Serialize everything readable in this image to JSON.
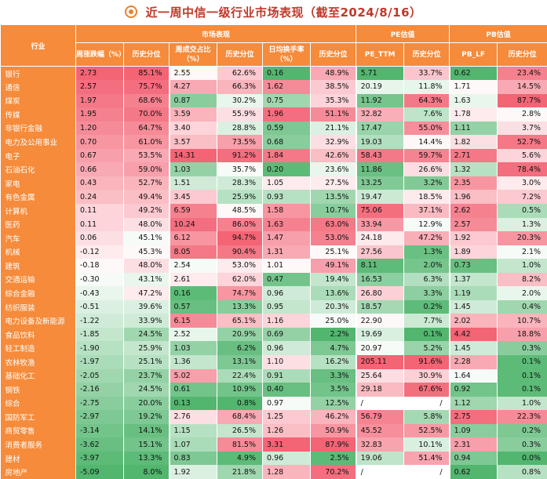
{
  "title": "近一周中信一级行业市场表现（截至2024/8/16）",
  "header": {
    "industry": "行业",
    "groups": [
      "市场表现",
      "PE估值",
      "PB估值"
    ],
    "columns": [
      "周涨跌幅（%）",
      "历史分位",
      "周成交占比（%）",
      "历史分位",
      "日均换手率（%）",
      "历史分位",
      "PE_TTM",
      "历史分位",
      "PB_LF",
      "历史分位"
    ]
  },
  "colors": {
    "header": "#f58b3b",
    "high": "#f25c6e",
    "low": "#3fae5f",
    "title": "#c0392b"
  },
  "rows": [
    {
      "name": "银行",
      "v": [
        "2.73",
        "85.1%",
        "2.55",
        "62.6%",
        "0.16",
        "48.9%",
        "5.71",
        "33.7%",
        "0.62",
        "23.4%"
      ]
    },
    {
      "name": "通信",
      "v": [
        "2.57",
        "75.7%",
        "4.27",
        "66.3%",
        "1.62",
        "38.5%",
        "20.19",
        "11.8%",
        "1.71",
        "14.5%"
      ]
    },
    {
      "name": "煤炭",
      "v": [
        "1.97",
        "68.6%",
        "0.87",
        "30.2%",
        "0.75",
        "35.3%",
        "11.92",
        "64.3%",
        "1.63",
        "87.7%"
      ]
    },
    {
      "name": "传媒",
      "v": [
        "1.95",
        "70.0%",
        "3.59",
        "55.9%",
        "1.96",
        "51.1%",
        "32.82",
        "7.6%",
        "1.78",
        "2.8%"
      ]
    },
    {
      "name": "非银行金融",
      "v": [
        "1.20",
        "64.7%",
        "3.40",
        "28.8%",
        "0.59",
        "21.1%",
        "17.47",
        "55.0%",
        "1.11",
        "3.7%"
      ]
    },
    {
      "name": "电力及公用事业",
      "v": [
        "0.70",
        "61.0%",
        "3.57",
        "73.5%",
        "0.68",
        "32.9%",
        "19.03",
        "14.4%",
        "1.82",
        "52.7%"
      ]
    },
    {
      "name": "电子",
      "v": [
        "0.67",
        "53.5%",
        "14.31",
        "91.2%",
        "1.84",
        "42.6%",
        "58.43",
        "59.7%",
        "2.71",
        "5.6%"
      ]
    },
    {
      "name": "石油石化",
      "v": [
        "0.66",
        "59.0%",
        "1.03",
        "35.7%",
        "0.20",
        "23.6%",
        "11.86",
        "26.6%",
        "1.32",
        "78.4%"
      ]
    },
    {
      "name": "家电",
      "v": [
        "0.43",
        "52.7%",
        "1.51",
        "28.3%",
        "1.05",
        "27.5%",
        "13.25",
        "3.2%",
        "2.35",
        "3.0%"
      ]
    },
    {
      "name": "有色金属",
      "v": [
        "0.24",
        "49.4%",
        "3.45",
        "25.9%",
        "0.93",
        "13.5%",
        "19.47",
        "18.5%",
        "1.96",
        "7.2%"
      ]
    },
    {
      "name": "计算机",
      "v": [
        "0.11",
        "49.2%",
        "6.59",
        "48.5%",
        "1.58",
        "10.7%",
        "75.06",
        "37.1%",
        "2.62",
        "0.5%"
      ]
    },
    {
      "name": "医药",
      "v": [
        "0.11",
        "48.0%",
        "10.24",
        "86.0%",
        "1.63",
        "63.0%",
        "33.94",
        "12.9%",
        "2.57",
        "1.3%"
      ]
    },
    {
      "name": "汽车",
      "v": [
        "0.06",
        "45.1%",
        "6.12",
        "94.7%",
        "1.47",
        "53.0%",
        "24.18",
        "47.2%",
        "1.92",
        "20.3%"
      ]
    },
    {
      "name": "机械",
      "v": [
        "-0.12",
        "45.3%",
        "8.05",
        "90.4%",
        "1.31",
        "25.1%",
        "27.56",
        "1.3%",
        "1.89",
        "2.1%"
      ]
    },
    {
      "name": "建筑",
      "v": [
        "-0.18",
        "48.0%",
        "2.54",
        "53.0%",
        "1.01",
        "49.1%",
        "8.11",
        "2.0%",
        "0.73",
        "1.0%"
      ]
    },
    {
      "name": "交通运输",
      "v": [
        "-0.30",
        "43.1%",
        "2.61",
        "62.0%",
        "0.47",
        "19.4%",
        "16.53",
        "6.3%",
        "1.37",
        "8.2%"
      ]
    },
    {
      "name": "综合金融",
      "v": [
        "-0.43",
        "47.2%",
        "0.16",
        "74.7%",
        "0.96",
        "13.6%",
        "26.80",
        "3.3%",
        "1.19",
        "2.0%"
      ]
    },
    {
      "name": "纺织服装",
      "v": [
        "-0.51",
        "39.6%",
        "0.57",
        "13.3%",
        "0.95",
        "20.3%",
        "18.57",
        "0.2%",
        "1.45",
        "0.4%"
      ]
    },
    {
      "name": "电力设备及新能源",
      "v": [
        "-1.22",
        "33.9%",
        "6.15",
        "65.1%",
        "1.16",
        "25.0%",
        "22.90",
        "7.7%",
        "2.02",
        "10.7%"
      ]
    },
    {
      "name": "食品饮料",
      "v": [
        "-1.85",
        "24.5%",
        "2.52",
        "20.9%",
        "0.69",
        "2.2%",
        "19.69",
        "0.1%",
        "4.42",
        "18.8%"
      ]
    },
    {
      "name": "轻工制造",
      "v": [
        "-1.90",
        "25.9%",
        "1.03",
        "6.2%",
        "0.96",
        "4.7%",
        "20.97",
        "5.2%",
        "1.45",
        "0.3%"
      ]
    },
    {
      "name": "农林牧渔",
      "v": [
        "-1.97",
        "25.1%",
        "1.36",
        "13.1%",
        "1.10",
        "16.2%",
        "205.11",
        "91.6%",
        "2.28",
        "0.1%"
      ]
    },
    {
      "name": "基础化工",
      "v": [
        "-2.05",
        "23.7%",
        "5.02",
        "22.4%",
        "0.91",
        "3.3%",
        "25.64",
        "30.9%",
        "1.64",
        "0.1%"
      ]
    },
    {
      "name": "钢铁",
      "v": [
        "-2.16",
        "24.5%",
        "0.61",
        "10.9%",
        "0.40",
        "3.5%",
        "29.18",
        "67.6%",
        "0.92",
        "0.1%"
      ]
    },
    {
      "name": "综合",
      "v": [
        "-2.75",
        "20.0%",
        "0.13",
        "0.8%",
        "0.97",
        "12.5%",
        "/",
        "/",
        "1.12",
        "1.0%"
      ]
    },
    {
      "name": "国防军工",
      "v": [
        "-2.97",
        "19.2%",
        "2.76",
        "68.4%",
        "1.25",
        "46.2%",
        "56.79",
        "5.8%",
        "2.75",
        "22.3%"
      ]
    },
    {
      "name": "商贸零售",
      "v": [
        "-3.14",
        "14.1%",
        "1.15",
        "26.5%",
        "1.26",
        "50.9%",
        "45.52",
        "52.5%",
        "1.09",
        "0.2%"
      ]
    },
    {
      "name": "消费者服务",
      "v": [
        "-3.62",
        "15.1%",
        "1.07",
        "81.5%",
        "3.31",
        "87.9%",
        "32.83",
        "10.1%",
        "2.31",
        "0.3%"
      ]
    },
    {
      "name": "建材",
      "v": [
        "-3.97",
        "13.3%",
        "0.83",
        "4.9%",
        "0.96",
        "2.5%",
        "19.06",
        "51.4%",
        "0.94",
        "0.0%"
      ]
    },
    {
      "name": "房地产",
      "v": [
        "-5.09",
        "8.0%",
        "1.92",
        "21.8%",
        "1.28",
        "70.2%",
        "/",
        "/",
        "0.62",
        "0.8%"
      ]
    }
  ]
}
